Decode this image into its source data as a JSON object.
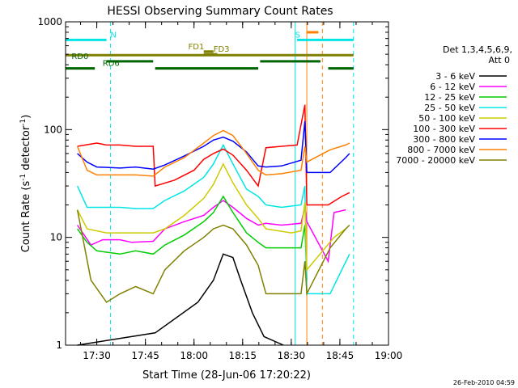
{
  "chart_data": {
    "type": "line",
    "title": "HESSI Observing Summary Count Rates",
    "xlabel": "Start Time (28-Jun-06 17:20:22)",
    "ylabel_main": "Count Rate (s",
    "ylabel_sup1": "-1",
    "ylabel_mid": " detector",
    "ylabel_sup2": "-1",
    "ylabel_end": ")",
    "yscale": "log",
    "xlim": [
      "17:20:22",
      "19:00:00"
    ],
    "ylim": [
      1,
      1000
    ],
    "x_ticks": [
      "17:30",
      "17:45",
      "18:00",
      "18:15",
      "18:30",
      "18:45",
      "19:00"
    ],
    "y_ticks": [
      "1",
      "10",
      "100",
      "1000"
    ],
    "legend_header": [
      "Det 1,3,4,5,6,9,",
      "Att 0"
    ],
    "legend_position": "right",
    "timestamp": "26-Feb-2010 04:59",
    "series": [
      {
        "name": "3 - 6 keV",
        "color": "#000000",
        "values": [
          [
            17.4,
            1.0
          ],
          [
            17.8,
            1.3
          ],
          [
            18.02,
            2.5
          ],
          [
            18.1,
            4.0
          ],
          [
            18.15,
            7.0
          ],
          [
            18.2,
            6.5
          ],
          [
            18.24,
            4.0
          ],
          [
            18.3,
            2.0
          ],
          [
            18.36,
            1.2
          ],
          [
            18.46,
            1.0
          ]
        ]
      },
      {
        "name": "6 - 12 keV",
        "color": "#ff00ff",
        "values": [
          [
            17.4,
            13.0
          ],
          [
            17.47,
            8.5
          ],
          [
            17.53,
            9.5
          ],
          [
            17.62,
            9.5
          ],
          [
            17.68,
            9.0
          ],
          [
            17.79,
            9.2
          ],
          [
            17.85,
            12.0
          ],
          [
            17.95,
            14.0
          ],
          [
            18.05,
            16.0
          ],
          [
            18.1,
            19.0
          ],
          [
            18.15,
            22.0
          ],
          [
            18.2,
            19.0
          ],
          [
            18.27,
            15.0
          ],
          [
            18.33,
            13.0
          ],
          [
            18.37,
            13.5
          ],
          [
            18.45,
            13.0
          ],
          [
            18.55,
            13.5
          ],
          [
            18.57,
            19.0
          ],
          [
            18.58,
            14.0
          ],
          [
            18.69,
            6.0
          ],
          [
            18.72,
            17.0
          ],
          [
            18.78,
            18.0
          ]
        ]
      },
      {
        "name": "12 - 25 keV",
        "color": "#00cc00",
        "values": [
          [
            17.4,
            12.0
          ],
          [
            17.45,
            9.0
          ],
          [
            17.5,
            7.5
          ],
          [
            17.62,
            7.0
          ],
          [
            17.7,
            7.5
          ],
          [
            17.79,
            7.0
          ],
          [
            17.85,
            8.5
          ],
          [
            17.95,
            10.5
          ],
          [
            18.05,
            14.0
          ],
          [
            18.1,
            17.0
          ],
          [
            18.15,
            24.0
          ],
          [
            18.2,
            17.0
          ],
          [
            18.27,
            11.0
          ],
          [
            18.33,
            9.0
          ],
          [
            18.37,
            8.0
          ],
          [
            18.45,
            8.0
          ],
          [
            18.55,
            8.0
          ],
          [
            18.57,
            13.0
          ],
          [
            18.58,
            4.0
          ]
        ]
      },
      {
        "name": "25 - 50 keV",
        "color": "#00e5e5",
        "values": [
          [
            17.4,
            30.0
          ],
          [
            17.45,
            19.0
          ],
          [
            17.5,
            19.0
          ],
          [
            17.62,
            19.0
          ],
          [
            17.7,
            18.5
          ],
          [
            17.79,
            18.5
          ],
          [
            17.85,
            22.0
          ],
          [
            17.95,
            27.0
          ],
          [
            18.05,
            36.0
          ],
          [
            18.1,
            48.0
          ],
          [
            18.15,
            72.0
          ],
          [
            18.2,
            48.0
          ],
          [
            18.27,
            28.0
          ],
          [
            18.33,
            24.0
          ],
          [
            18.37,
            20.0
          ],
          [
            18.45,
            19.0
          ],
          [
            18.55,
            20.0
          ],
          [
            18.57,
            30.0
          ],
          [
            18.58,
            3.0
          ],
          [
            18.7,
            3.0
          ],
          [
            18.76,
            5.0
          ],
          [
            18.8,
            7.0
          ]
        ]
      },
      {
        "name": "50 - 100 keV",
        "color": "#cccc00",
        "values": [
          [
            17.4,
            18.0
          ],
          [
            17.45,
            12.0
          ],
          [
            17.55,
            11.0
          ],
          [
            17.7,
            11.0
          ],
          [
            17.79,
            11.0
          ],
          [
            17.85,
            12.0
          ],
          [
            17.95,
            16.0
          ],
          [
            18.05,
            23.0
          ],
          [
            18.1,
            31.0
          ],
          [
            18.15,
            48.0
          ],
          [
            18.2,
            32.0
          ],
          [
            18.27,
            20.0
          ],
          [
            18.33,
            15.0
          ],
          [
            18.37,
            12.0
          ],
          [
            18.5,
            11.0
          ],
          [
            18.55,
            11.5
          ],
          [
            18.57,
            21.0
          ],
          [
            18.58,
            5.0
          ],
          [
            18.72,
            10.0
          ],
          [
            18.78,
            12.0
          ]
        ]
      },
      {
        "name": "100 - 300 keV",
        "color": "#ff0000",
        "values": [
          [
            17.4,
            70.0
          ],
          [
            17.5,
            75.0
          ],
          [
            17.55,
            72.0
          ],
          [
            17.62,
            72.0
          ],
          [
            17.7,
            70.0
          ],
          [
            17.79,
            70.0
          ],
          [
            17.8,
            30.0
          ],
          [
            17.9,
            34.0
          ],
          [
            18.0,
            42.0
          ],
          [
            18.05,
            53.0
          ],
          [
            18.1,
            60.0
          ],
          [
            18.15,
            66.0
          ],
          [
            18.2,
            58.0
          ],
          [
            18.27,
            42.0
          ],
          [
            18.33,
            30.0
          ],
          [
            18.37,
            68.0
          ],
          [
            18.45,
            70.0
          ],
          [
            18.53,
            72.0
          ],
          [
            18.57,
            170.0
          ],
          [
            18.58,
            20.0
          ],
          [
            18.69,
            20.0
          ],
          [
            18.76,
            24.0
          ],
          [
            18.8,
            26.0
          ]
        ]
      },
      {
        "name": "300 - 800 keV",
        "color": "#0000ff",
        "values": [
          [
            17.4,
            60.0
          ],
          [
            17.45,
            50.0
          ],
          [
            17.5,
            45.0
          ],
          [
            17.62,
            44.0
          ],
          [
            17.7,
            45.0
          ],
          [
            17.79,
            43.0
          ],
          [
            17.85,
            47.0
          ],
          [
            17.95,
            57.0
          ],
          [
            18.05,
            70.0
          ],
          [
            18.1,
            80.0
          ],
          [
            18.15,
            85.0
          ],
          [
            18.2,
            78.0
          ],
          [
            18.27,
            62.0
          ],
          [
            18.33,
            46.0
          ],
          [
            18.37,
            45.0
          ],
          [
            18.45,
            46.0
          ],
          [
            18.55,
            52.0
          ],
          [
            18.57,
            120.0
          ],
          [
            18.58,
            40.0
          ],
          [
            18.7,
            40.0
          ],
          [
            18.78,
            55.0
          ],
          [
            18.8,
            60.0
          ]
        ]
      },
      {
        "name": "800 - 7000 keV",
        "color": "#ff8000",
        "values": [
          [
            17.4,
            70.0
          ],
          [
            17.45,
            42.0
          ],
          [
            17.5,
            38.0
          ],
          [
            17.62,
            38.0
          ],
          [
            17.7,
            38.0
          ],
          [
            17.79,
            37.0
          ],
          [
            17.85,
            45.0
          ],
          [
            17.95,
            55.0
          ],
          [
            18.05,
            75.0
          ],
          [
            18.1,
            88.0
          ],
          [
            18.15,
            98.0
          ],
          [
            18.2,
            88.0
          ],
          [
            18.27,
            60.0
          ],
          [
            18.33,
            42.0
          ],
          [
            18.37,
            38.0
          ],
          [
            18.45,
            39.0
          ],
          [
            18.55,
            42.0
          ],
          [
            18.57,
            70.0
          ],
          [
            18.58,
            50.0
          ],
          [
            18.7,
            65.0
          ],
          [
            18.78,
            72.0
          ],
          [
            18.8,
            75.0
          ]
        ]
      },
      {
        "name": "7000 - 20000 keV",
        "color": "#808000",
        "values": [
          [
            17.4,
            18.0
          ],
          [
            17.47,
            4.0
          ],
          [
            17.55,
            2.5
          ],
          [
            17.62,
            3.0
          ],
          [
            17.7,
            3.5
          ],
          [
            17.79,
            3.0
          ],
          [
            17.85,
            5.0
          ],
          [
            17.95,
            7.5
          ],
          [
            18.05,
            10.0
          ],
          [
            18.1,
            12.0
          ],
          [
            18.15,
            13.0
          ],
          [
            18.2,
            12.0
          ],
          [
            18.27,
            8.5
          ],
          [
            18.33,
            5.5
          ],
          [
            18.37,
            3.0
          ],
          [
            18.45,
            3.0
          ],
          [
            18.55,
            3.0
          ],
          [
            18.57,
            6.0
          ],
          [
            18.58,
            3.0
          ],
          [
            18.7,
            8.0
          ],
          [
            18.78,
            12.0
          ],
          [
            18.8,
            13.0
          ]
        ]
      }
    ],
    "flags": [
      {
        "label": "N",
        "color": "#00e5e5",
        "y": 680,
        "segments": [
          [
            17.34,
            17.55
          ]
        ],
        "label_at": 17.57
      },
      {
        "label": "S",
        "color": "#00e5e5",
        "y": 680,
        "segments": [
          [
            18.53,
            18.82
          ]
        ],
        "label_at": 18.52
      },
      {
        "label": "",
        "color": "#ff8000",
        "y": 800,
        "segments": [
          [
            18.58,
            18.64
          ]
        ],
        "label_at": null
      },
      {
        "label": "FD1",
        "color": "#808000",
        "y": 530,
        "segments": [
          [
            18.05,
            18.1
          ]
        ],
        "label_at": 17.97
      },
      {
        "label": "FD3",
        "color": "#808000",
        "y": 500,
        "segments": [
          [
            18.05,
            18.12
          ]
        ],
        "label_at": 18.1
      },
      {
        "label": "",
        "color": "#808000",
        "y": 490,
        "segments": [
          [
            17.34,
            18.82
          ]
        ],
        "label_at": null
      },
      {
        "label": "RD0",
        "color": "#006400",
        "y": 430,
        "segments": [
          [
            17.55,
            17.79
          ],
          [
            18.34,
            18.65
          ]
        ],
        "label_at": 17.37
      },
      {
        "label": "RD6",
        "color": "#006400",
        "y": 370,
        "segments": [
          [
            17.34,
            17.49
          ],
          [
            17.8,
            18.33
          ],
          [
            18.69,
            18.82
          ]
        ],
        "label_at": 17.53
      }
    ],
    "vlines": [
      {
        "x": 17.57,
        "color": "#00e5e5",
        "style": "dashed"
      },
      {
        "x": 18.52,
        "color": "#00e5e5",
        "style": "solid"
      },
      {
        "x": 18.58,
        "color": "#ff8000",
        "style": "solid"
      },
      {
        "x": 18.66,
        "color": "#ff8000",
        "style": "dashed"
      },
      {
        "x": 18.82,
        "color": "#00e5e5",
        "style": "dashed"
      }
    ]
  }
}
